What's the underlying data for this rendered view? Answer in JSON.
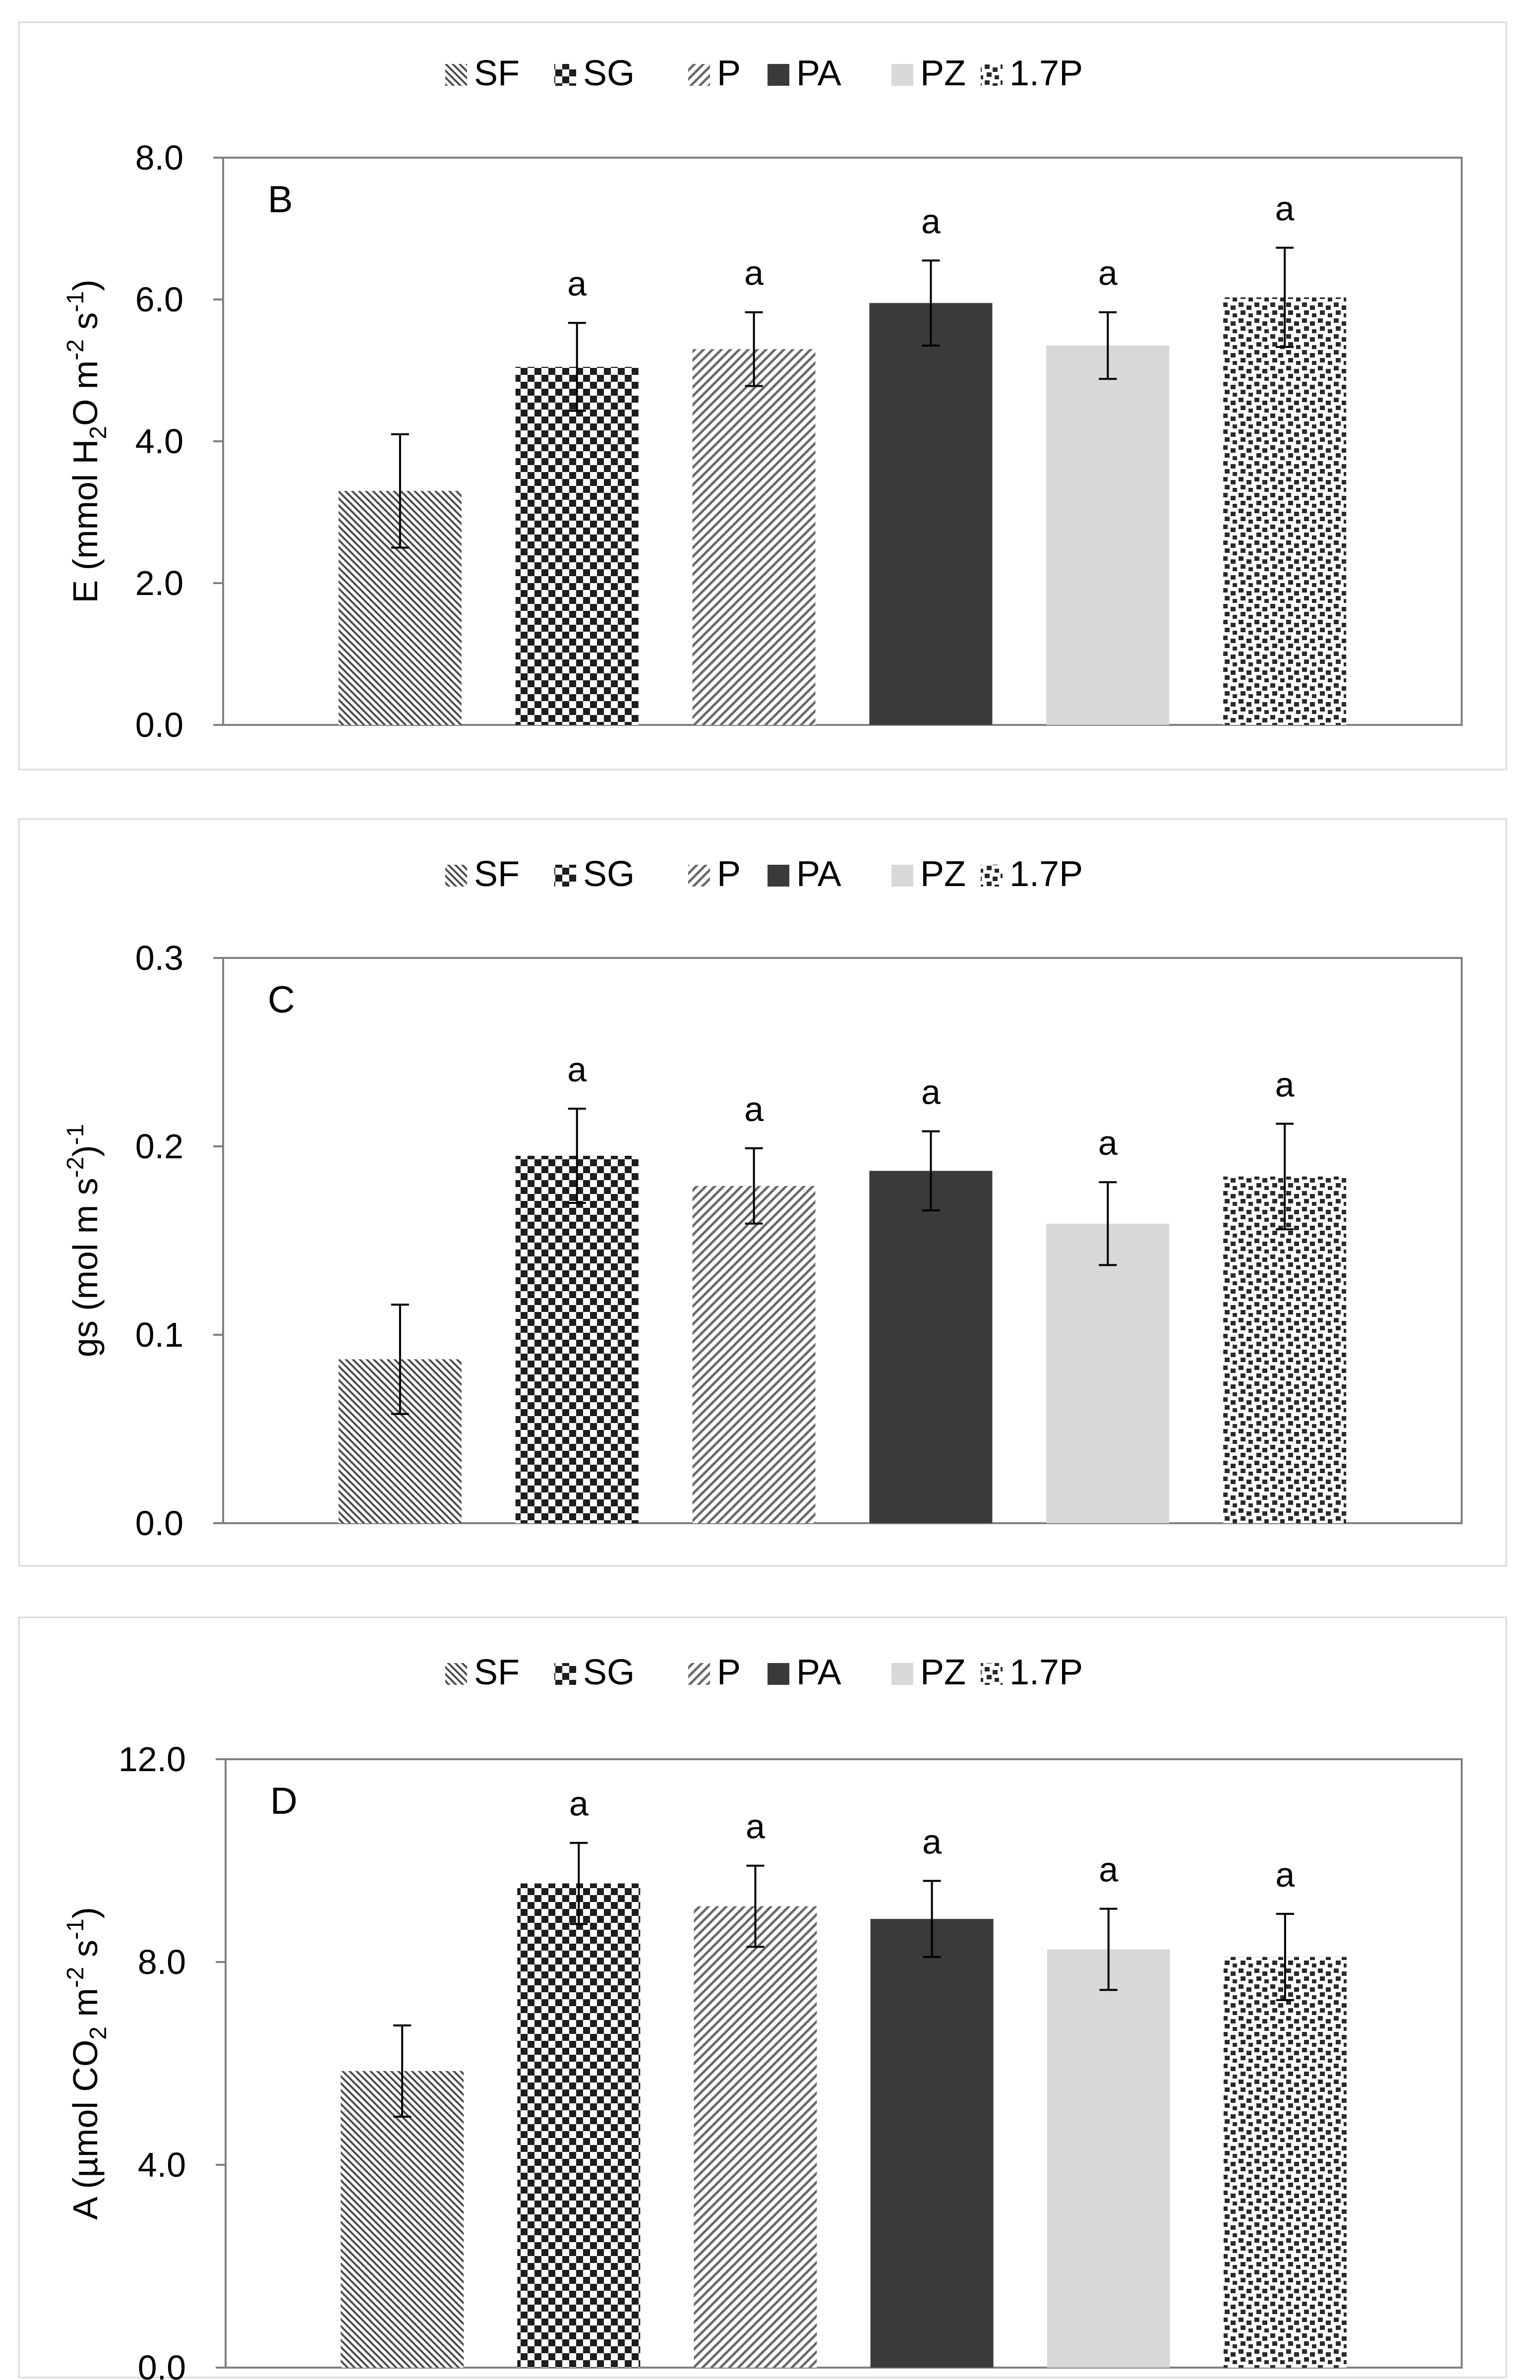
{
  "legend": [
    "SF",
    "SG",
    "P",
    "PA",
    "PZ",
    "1.7P"
  ],
  "colors": {
    "SF": "#555555",
    "SG": "#1e1e1e",
    "P": "#6a6a6a",
    "PA": "#3a3a3a",
    "PZ": "#d8d8d8",
    "1.7P": "#2a2a2a",
    "axis": "#808080",
    "error": "#000000"
  },
  "chart_data": [
    {
      "type": "bar",
      "panel_label": "B",
      "ylabel": "E (mmol H2O m-2 s-1)",
      "ylabel_parts": {
        "main1": "E (mmol H",
        "sub": "2",
        "main2": "O m",
        "sup1": "-2",
        "main3": " s",
        "sup2": "-1",
        "main4": ")"
      },
      "categories": [
        "SF",
        "SG",
        "P",
        "PA",
        "PZ",
        "1.7P"
      ],
      "values": [
        3.3,
        5.05,
        5.3,
        5.95,
        5.35,
        6.03
      ],
      "errors": [
        0.8,
        0.62,
        0.52,
        0.6,
        0.47,
        0.7
      ],
      "sig_letters": [
        "",
        "a",
        "a",
        "a",
        "a",
        "a"
      ],
      "ylim": [
        0,
        8.0
      ],
      "yticks": [
        0,
        2,
        4,
        6,
        8
      ],
      "ytick_labels": [
        "0.0",
        "2.0",
        "4.0",
        "6.0",
        "8.0"
      ]
    },
    {
      "type": "bar",
      "panel_label": "C",
      "ylabel": "gs (mol m-2 s-1)",
      "ylabel_parts": {
        "main1": "gs (mol m",
        "sup1": "-2",
        "main2": " s",
        "sup2": "-1",
        "main3": ")"
      },
      "categories": [
        "SF",
        "SG",
        "P",
        "PA",
        "PZ",
        "1.7P"
      ],
      "values": [
        0.087,
        0.195,
        0.179,
        0.187,
        0.159,
        0.184
      ],
      "errors": [
        0.029,
        0.025,
        0.02,
        0.021,
        0.022,
        0.028
      ],
      "sig_letters": [
        "",
        "a",
        "a",
        "a",
        "a",
        "a"
      ],
      "ylim": [
        0,
        0.3
      ],
      "yticks": [
        0,
        0.1,
        0.2,
        0.3
      ],
      "ytick_labels": [
        "0.0",
        "0.1",
        "0.2",
        "0.3"
      ]
    },
    {
      "type": "bar",
      "panel_label": "D",
      "ylabel": "A (µmol CO2 m-2 s-1)",
      "ylabel_parts": {
        "main1": "A (µmol CO",
        "sub": "2",
        "main2": " m",
        "sup1": "-2",
        "main3": " s",
        "sup2": "-1",
        "main4": ")"
      },
      "categories": [
        "SF",
        "SG",
        "P",
        "PA",
        "PZ",
        "1.7P"
      ],
      "values": [
        5.85,
        9.55,
        9.1,
        8.85,
        8.25,
        8.1
      ],
      "errors": [
        0.9,
        0.8,
        0.8,
        0.75,
        0.8,
        0.85
      ],
      "sig_letters": [
        "",
        "a",
        "a",
        "a",
        "a",
        "a"
      ],
      "ylim": [
        0,
        12.0
      ],
      "yticks": [
        0,
        4,
        8,
        12
      ],
      "ytick_labels": [
        "0.0",
        "4.0",
        "8.0",
        "12.0"
      ]
    }
  ]
}
